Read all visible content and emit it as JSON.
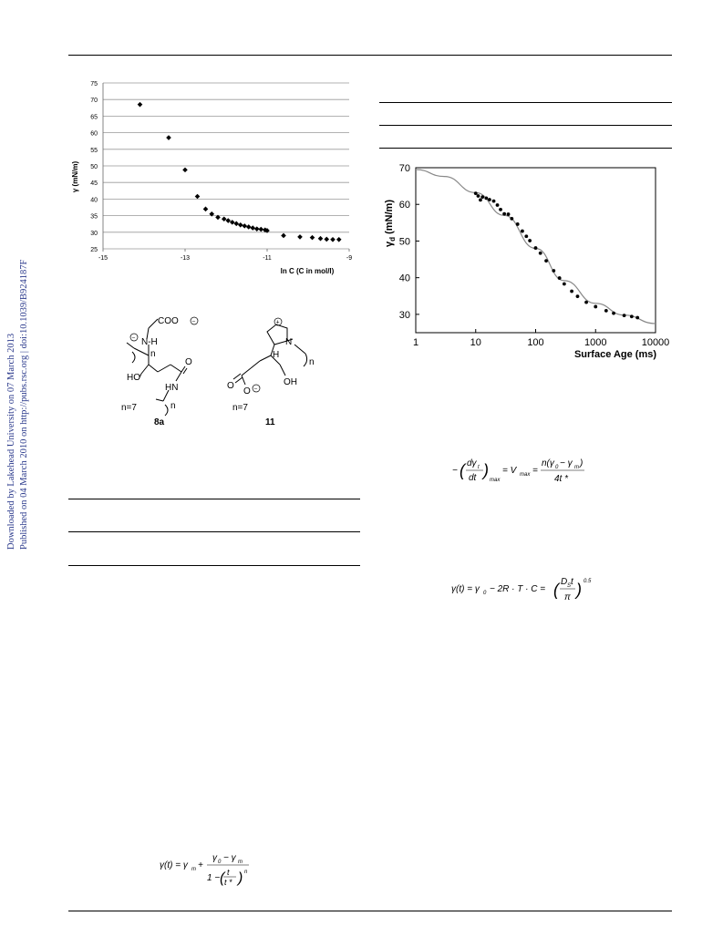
{
  "sidebar": {
    "line1": "Downloaded by Lakehead University on 07 March 2013",
    "line2": "Published on 04 March 2010 on http://pubs.rsc.org | doi:10.1039/B924187F"
  },
  "fig_left": {
    "ylabel": "γ (mN/m)",
    "xlabel": "ln C (C in mol/l)",
    "y_ticks": [
      "75",
      "70",
      "65",
      "60",
      "55",
      "50",
      "45",
      "40",
      "35",
      "30",
      "25"
    ],
    "x_ticks": [
      "-15",
      "-13",
      "-11",
      "-9"
    ]
  },
  "fig_right": {
    "ylabel_main": "γ",
    "ylabel_sub": "d",
    "ylabel_unit": "(mN/m)",
    "xlabel": "Surface Age (ms)",
    "y_ticks": [
      "70",
      "60",
      "50",
      "40",
      "30"
    ],
    "x_ticks": [
      "1",
      "10",
      "100",
      "1000",
      "10000"
    ]
  },
  "structures": {
    "left_label": "8a",
    "right_label": "11",
    "n_left": "n=7",
    "n_right": "n=7",
    "coo": "COO",
    "nh": "N-H",
    "hn": "HN",
    "oh": "OH",
    "ho": "HO",
    "o": "O",
    "n_sub": "n",
    "h": "H",
    "n_atom": "N"
  },
  "chart_data": [
    {
      "type": "scatter",
      "xlabel": "ln C (C in mol/l)",
      "ylabel": "γ (mN/m)",
      "xlim": [
        -15,
        -9
      ],
      "ylim": [
        25,
        75
      ],
      "grid": true,
      "x": [
        -14.1,
        -13.4,
        -13.0,
        -12.7,
        -12.5,
        -12.35,
        -12.2,
        -12.05,
        -11.95,
        -11.85,
        -11.75,
        -11.65,
        -11.55,
        -11.45,
        -11.35,
        -11.25,
        -11.15,
        -11.05,
        -11.0,
        -10.6,
        -10.2,
        -9.9,
        -9.7,
        -9.55,
        -9.4,
        -9.25
      ],
      "y": [
        68.5,
        58.5,
        48.8,
        40.8,
        37.0,
        35.5,
        34.5,
        34.0,
        33.5,
        33.0,
        32.6,
        32.2,
        31.9,
        31.6,
        31.3,
        31.0,
        30.9,
        30.7,
        30.5,
        29.0,
        28.6,
        28.4,
        28.1,
        27.9,
        27.8,
        27.8
      ]
    },
    {
      "type": "scatter",
      "xlabel": "Surface Age (ms)",
      "ylabel": "γd (mN/m)",
      "xscale": "log",
      "xlim": [
        1,
        10000
      ],
      "ylim": [
        25,
        70
      ],
      "grid": false,
      "x": [
        10,
        11,
        12,
        13,
        15,
        17,
        20,
        23,
        26,
        30,
        35,
        40,
        50,
        60,
        70,
        80,
        100,
        120,
        150,
        200,
        250,
        300,
        400,
        500,
        700,
        1000,
        1500,
        2000,
        3000,
        4000,
        5000
      ],
      "y": [
        63.0,
        62.3,
        61.2,
        62.0,
        61.7,
        61.3,
        60.9,
        59.8,
        58.6,
        57.4,
        57.3,
        56.1,
        54.6,
        52.7,
        51.3,
        50.1,
        48.1,
        46.7,
        44.6,
        41.9,
        39.9,
        38.3,
        36.3,
        34.9,
        33.3,
        32.1,
        31.0,
        30.3,
        29.7,
        29.4,
        29.1
      ],
      "fit_x": [
        1,
        3,
        10,
        30,
        100,
        300,
        1000,
        3000,
        10000
      ],
      "fit_y": [
        69.5,
        67.6,
        63.2,
        57.0,
        48.0,
        39.2,
        33.0,
        29.8,
        27.5
      ]
    }
  ]
}
